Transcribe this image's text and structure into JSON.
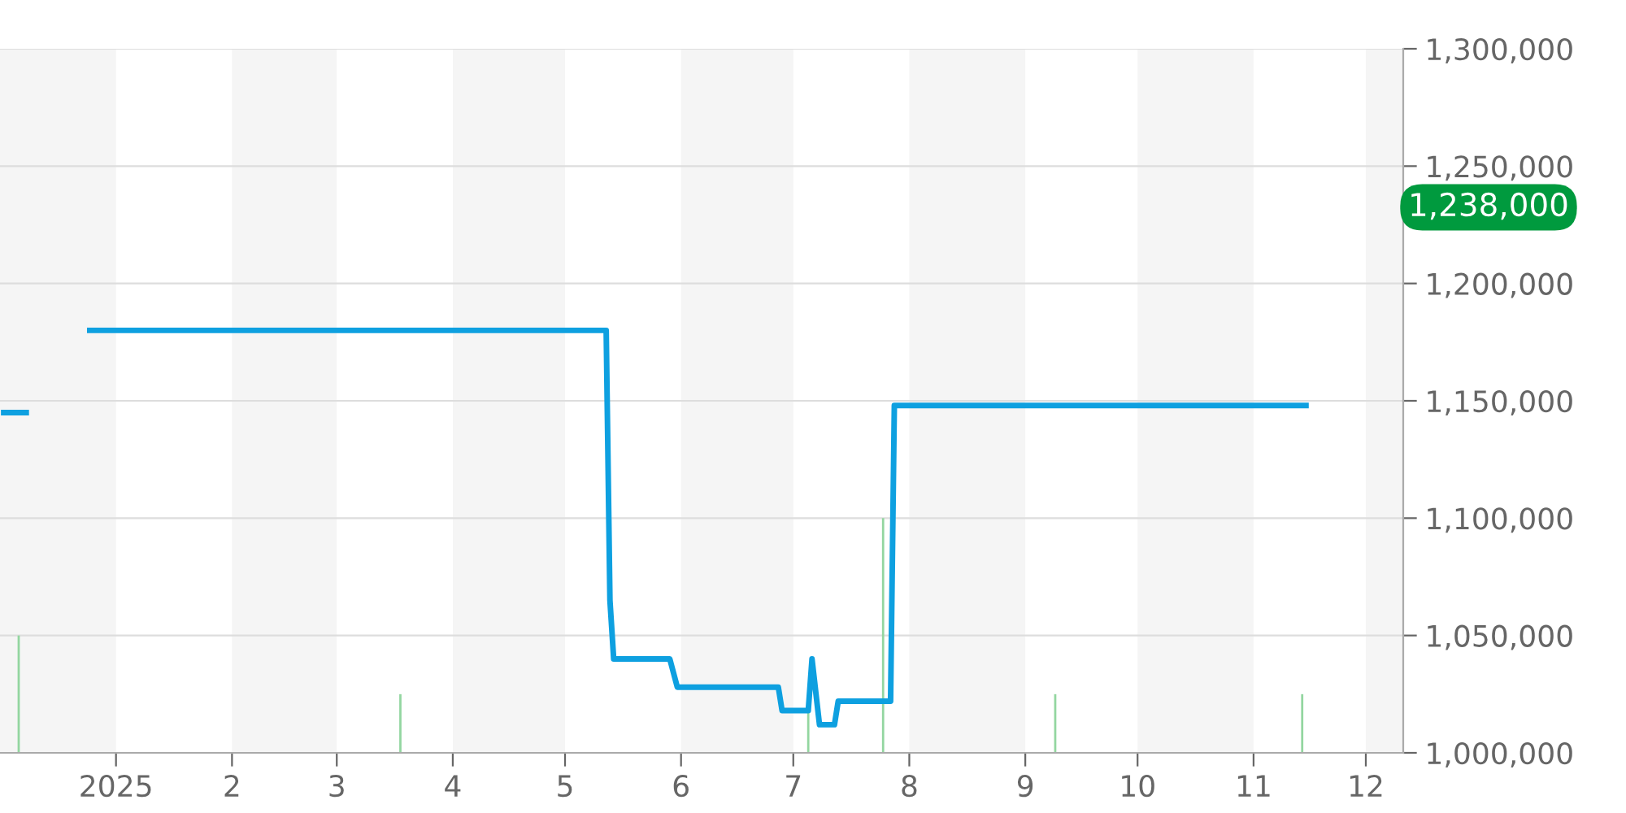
{
  "chart_data": {
    "type": "line",
    "series": [
      {
        "type": "bar",
        "color": "#93d6a0",
        "x": [
          "2024-12-06",
          "2025-03-18",
          "2025-07-05",
          "2025-07-25",
          "2025-09-09",
          "2025-11-14"
        ],
        "base": [
          1000000,
          1000000,
          1000000,
          1000000,
          1000000,
          1000000
        ],
        "values": [
          50000,
          25000,
          18000,
          100000,
          25000,
          25000
        ]
      },
      {
        "color": "#0ea0e0",
        "x": [
          "2024-12-02",
          "2024-12-08",
          "2024-12-16",
          "2024-12-25",
          "2025-05-12",
          "2025-05-13",
          "2025-05-14",
          "2025-05-29",
          "2025-05-31",
          "2025-06-27",
          "2025-06-28",
          "2025-07-05",
          "2025-07-06",
          "2025-07-08",
          "2025-07-12",
          "2025-07-13",
          "2025-07-27",
          "2025-07-28",
          "2025-11-15"
        ],
        "values": [
          1145000,
          1145000,
          null,
          1180000,
          1180000,
          1065000,
          1040000,
          1040000,
          1028000,
          1028000,
          1018000,
          1018000,
          1040000,
          1012000,
          1012000,
          1022000,
          1022000,
          1148000,
          1148000
        ]
      }
    ],
    "xlim": [
      "2024-12-01",
      "2025-12-11"
    ],
    "xticks": [
      {
        "value": "2025-01-01",
        "label": "2025"
      },
      {
        "value": "2025-02-01",
        "label": "2"
      },
      {
        "value": "2025-03-01",
        "label": "3"
      },
      {
        "value": "2025-04-01",
        "label": "4"
      },
      {
        "value": "2025-05-01",
        "label": "5"
      },
      {
        "value": "2025-06-01",
        "label": "6"
      },
      {
        "value": "2025-07-01",
        "label": "7"
      },
      {
        "value": "2025-08-01",
        "label": "8"
      },
      {
        "value": "2025-09-01",
        "label": "9"
      },
      {
        "value": "2025-10-01",
        "label": "10"
      },
      {
        "value": "2025-11-01",
        "label": "11"
      },
      {
        "value": "2025-12-01",
        "label": "12"
      }
    ],
    "ylim": [
      1000000,
      1300000
    ],
    "yticks": [
      {
        "value": 1000000,
        "label": "1,000,000"
      },
      {
        "value": 1050000,
        "label": "1,050,000"
      },
      {
        "value": 1100000,
        "label": "1,100,000"
      },
      {
        "value": 1150000,
        "label": "1,150,000"
      },
      {
        "value": 1200000,
        "label": "1,200,000"
      },
      {
        "value": 1250000,
        "label": "1,250,000"
      },
      {
        "value": 1300000,
        "label": "1,300,000"
      }
    ],
    "grid": "y",
    "bands": [
      {
        "axis": "x",
        "from": "2024-12-01",
        "to": "2025-01-01",
        "color": "#f5f5f5"
      },
      {
        "axis": "x",
        "from": "2025-02-01",
        "to": "2025-03-01",
        "color": "#f5f5f5"
      },
      {
        "axis": "x",
        "from": "2025-04-01",
        "to": "2025-05-01",
        "color": "#f5f5f5"
      },
      {
        "axis": "x",
        "from": "2025-06-01",
        "to": "2025-07-01",
        "color": "#f5f5f5"
      },
      {
        "axis": "x",
        "from": "2025-08-01",
        "to": "2025-09-01",
        "color": "#f5f5f5"
      },
      {
        "axis": "x",
        "from": "2025-10-01",
        "to": "2025-11-01",
        "color": "#f5f5f5"
      },
      {
        "axis": "x",
        "from": "2025-12-01",
        "to": "2025-12-11",
        "color": "#f5f5f5"
      }
    ],
    "annotations": [
      "1,238,000"
    ]
  }
}
